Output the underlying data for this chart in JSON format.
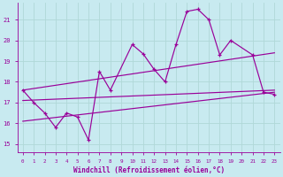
{
  "xlabel": "Windchill (Refroidissement éolien,°C)",
  "bg_color": "#c8eaf0",
  "grid_color": "#aadddd",
  "line_color": "#990099",
  "xlim": [
    -0.5,
    23.5
  ],
  "ylim": [
    14.6,
    21.8
  ],
  "xticks": [
    0,
    1,
    2,
    3,
    4,
    5,
    6,
    7,
    8,
    9,
    10,
    11,
    12,
    13,
    14,
    15,
    16,
    17,
    18,
    19,
    20,
    21,
    22,
    23
  ],
  "yticks": [
    15,
    16,
    17,
    18,
    19,
    20,
    21
  ],
  "data_x": [
    0,
    1,
    2,
    3,
    4,
    5,
    6,
    7,
    8,
    10,
    11,
    12,
    13,
    14,
    15,
    16,
    17,
    18,
    19,
    21,
    22,
    23
  ],
  "data_y": [
    17.6,
    17.0,
    16.5,
    15.8,
    16.5,
    16.3,
    15.2,
    18.5,
    17.6,
    19.8,
    19.35,
    18.6,
    18.0,
    19.8,
    21.4,
    21.5,
    21.0,
    19.3,
    20.0,
    19.3,
    17.5,
    17.4
  ],
  "trend1_x": [
    0,
    23
  ],
  "trend1_y": [
    17.1,
    17.6
  ],
  "trend2_x": [
    0,
    23
  ],
  "trend2_y": [
    16.1,
    17.5
  ],
  "trend3_x": [
    0,
    23
  ],
  "trend3_y": [
    17.6,
    19.4
  ]
}
